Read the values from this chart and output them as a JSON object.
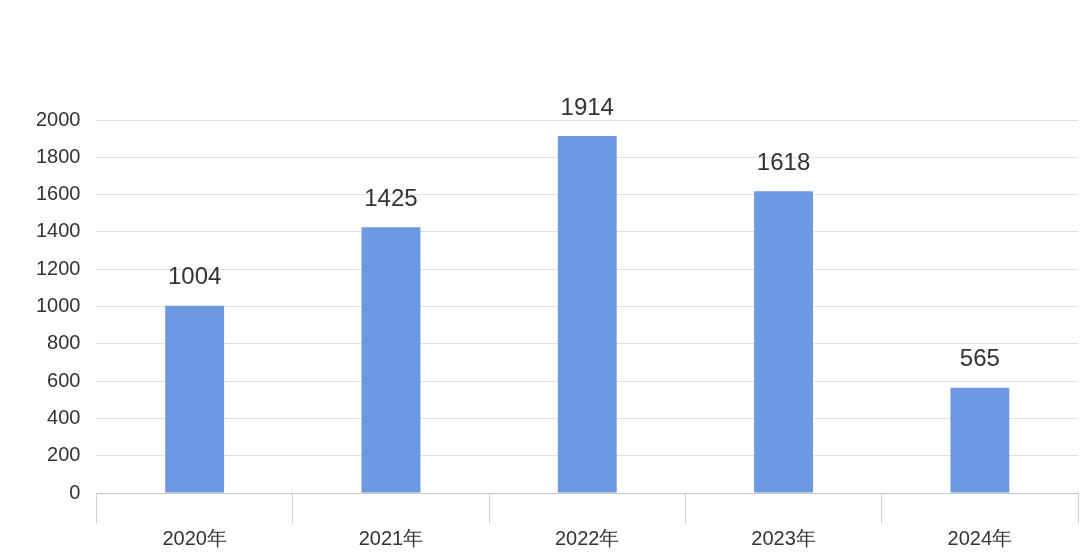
{
  "chart_data": {
    "type": "bar",
    "categories": [
      "2020年",
      "2021年",
      "2022年",
      "2023年",
      "2024年"
    ],
    "values": [
      1004,
      1425,
      1914,
      1618,
      565
    ],
    "color": "#6d98e2",
    "ylim": [
      0,
      2000
    ],
    "yticks": [
      0,
      200,
      400,
      600,
      800,
      1000,
      1200,
      1400,
      1600,
      1800,
      2000
    ],
    "grid": "y",
    "data_labels": true
  }
}
